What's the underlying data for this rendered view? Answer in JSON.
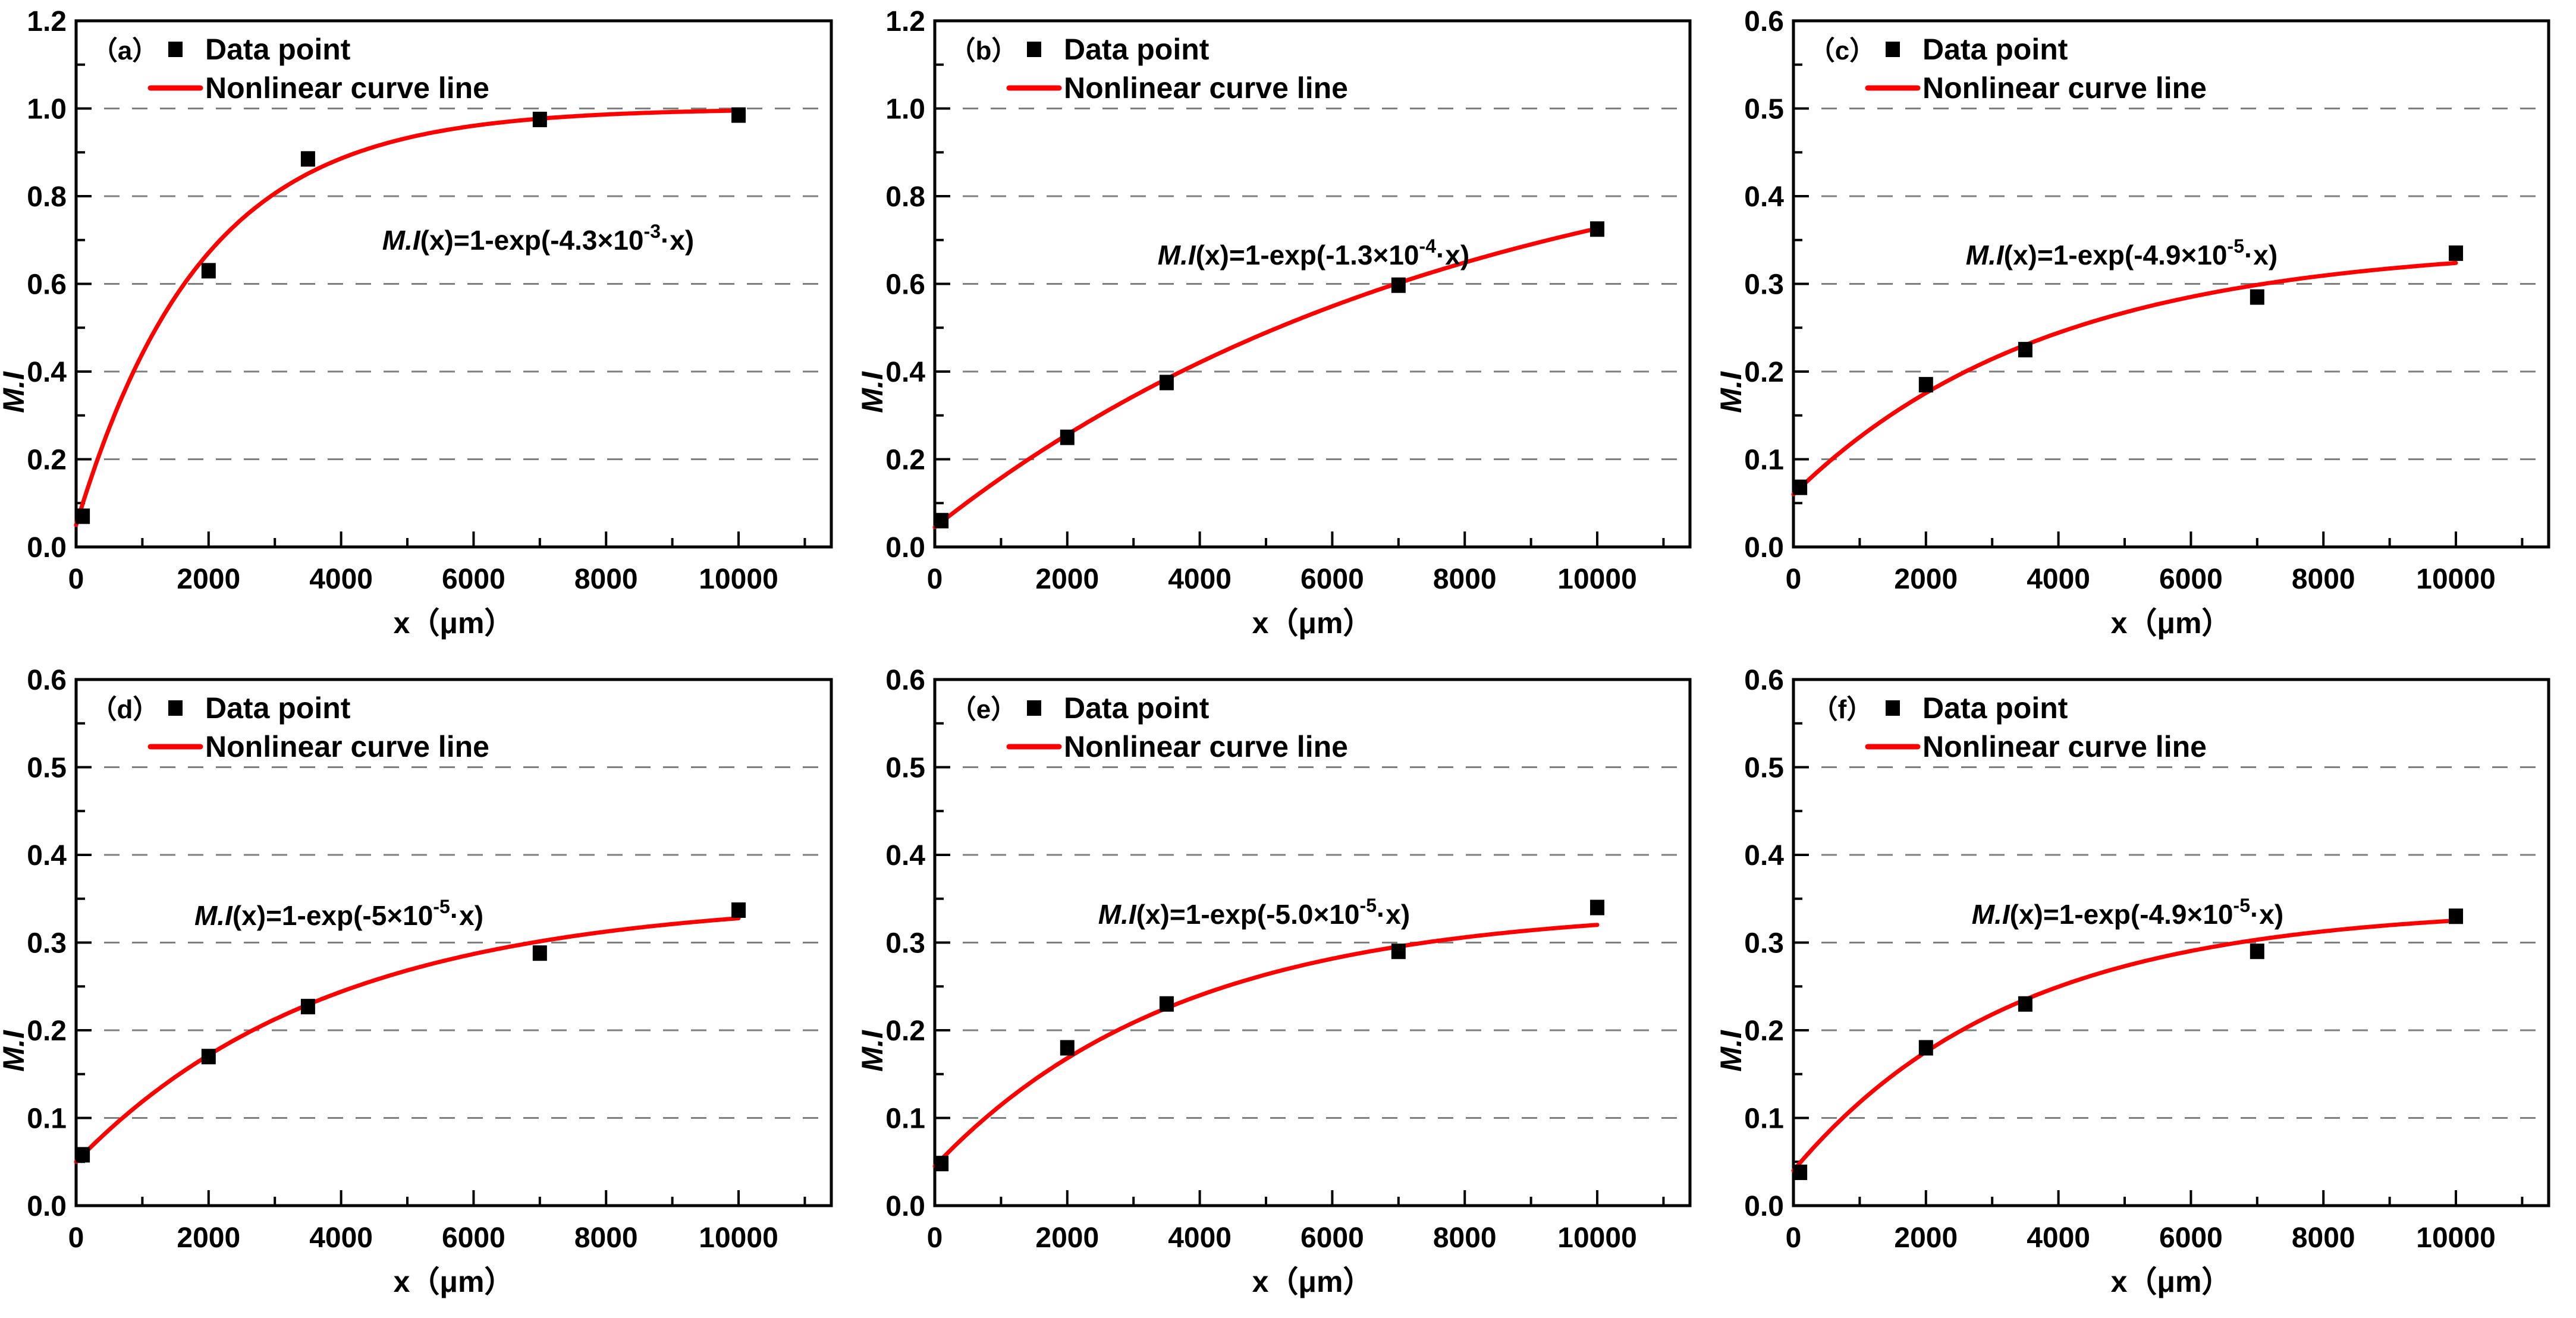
{
  "figure": {
    "xlabel": "x（μm）",
    "ylabel": "M.I",
    "legend": {
      "marker_label": "Data point",
      "line_label": "Nonlinear curve line"
    },
    "colors": {
      "curve": "#fe0000",
      "marker": "#000000",
      "grid": "#7f7f7f",
      "frame": "#000000",
      "background": "#ffffff"
    }
  },
  "chart_data": [
    {
      "type": "scatter",
      "panel": "a",
      "tag": "（a）",
      "x": [
        100,
        2000,
        3500,
        7000,
        10000
      ],
      "y": [
        0.07,
        0.63,
        0.885,
        0.975,
        0.985
      ],
      "xlim": [
        0,
        11400
      ],
      "ylim": [
        0,
        1.2
      ],
      "xticks": [
        0,
        2000,
        4000,
        6000,
        8000,
        10000
      ],
      "ytick_labels": [
        "0.0",
        "0.2",
        "0.4",
        "0.6",
        "0.8",
        "1.0",
        "1.2"
      ],
      "ytick_step": 0.2,
      "grid": "dashed-horizontal",
      "legend_position": "top-left-inside",
      "curve": {
        "model": "y = y0 + a*(1-exp(-k*x))",
        "y0": 0.05,
        "a": 0.95,
        "k": 0.00053
      },
      "equation": {
        "text": "M.I(x)=1-exp(-4.3×10⁻³·x)",
        "mi": "M.I",
        "body": "(x)=1-exp(-4.3×10",
        "exponent": "-3",
        "tail": "·x)"
      },
      "eq_pos": {
        "cx": 905,
        "cy": 420
      }
    },
    {
      "type": "scatter",
      "panel": "b",
      "tag": "（b）",
      "x": [
        100,
        2000,
        3500,
        7000,
        10000
      ],
      "y": [
        0.06,
        0.25,
        0.375,
        0.597,
        0.725
      ],
      "xlim": [
        0,
        11400
      ],
      "ylim": [
        0,
        1.2
      ],
      "xticks": [
        0,
        2000,
        4000,
        6000,
        8000,
        10000
      ],
      "ytick_labels": [
        "0.0",
        "0.2",
        "0.4",
        "0.6",
        "0.8",
        "1.0",
        "1.2"
      ],
      "ytick_step": 0.2,
      "grid": "dashed-horizontal",
      "legend_position": "top-left-inside",
      "curve": {
        "model": "y = y0 + a*(1-exp(-k*x))",
        "y0": 0.045,
        "a": 0.955,
        "k": 0.000125
      },
      "equation": {
        "text": "M.I(x)=1-exp(-1.3×10⁻⁴·x)",
        "mi": "M.I",
        "body": "(x)=1-exp(-1.3×10",
        "exponent": "-4",
        "tail": "·x)"
      },
      "eq_pos": {
        "cx": 765,
        "cy": 445
      }
    },
    {
      "type": "scatter",
      "panel": "c",
      "tag": "（c）",
      "x": [
        100,
        2000,
        3500,
        7000,
        10000
      ],
      "y": [
        0.068,
        0.185,
        0.225,
        0.285,
        0.335
      ],
      "xlim": [
        0,
        11400
      ],
      "ylim": [
        0,
        0.6
      ],
      "xticks": [
        0,
        2000,
        4000,
        6000,
        8000,
        10000
      ],
      "ytick_labels": [
        "0.0",
        "0.1",
        "0.2",
        "0.3",
        "0.4",
        "0.5",
        "0.6"
      ],
      "ytick_step": 0.1,
      "grid": "dashed-horizontal",
      "legend_position": "top-left-inside",
      "curve": {
        "model": "y = y0 + a*(1-exp(-k*x))",
        "y0": 0.06,
        "a": 0.285,
        "k": 0.00026
      },
      "equation": {
        "text": "M.I(x)=1-exp(-4.9×10⁻⁵·x)",
        "mi": "M.I",
        "body": "(x)=1-exp(-4.9×10",
        "exponent": "-5",
        "tail": "·x)"
      },
      "eq_pos": {
        "cx": 680,
        "cy": 445
      }
    },
    {
      "type": "scatter",
      "panel": "d",
      "tag": "（d）",
      "x": [
        100,
        2000,
        3500,
        7000,
        10000
      ],
      "y": [
        0.058,
        0.17,
        0.227,
        0.288,
        0.337
      ],
      "xlim": [
        0,
        11400
      ],
      "ylim": [
        0,
        0.6
      ],
      "xticks": [
        0,
        2000,
        4000,
        6000,
        8000,
        10000
      ],
      "ytick_labels": [
        "0.0",
        "0.1",
        "0.2",
        "0.3",
        "0.4",
        "0.5",
        "0.6"
      ],
      "ytick_step": 0.1,
      "grid": "dashed-horizontal",
      "legend_position": "top-left-inside",
      "curve": {
        "model": "y = y0 + a*(1-exp(-k*x))",
        "y0": 0.05,
        "a": 0.3,
        "k": 0.00026
      },
      "equation": {
        "text": "M.I(x)=1-exp(-5×10⁻⁵·x)",
        "mi": "M.I",
        "body": "(x)=1-exp(-5×10",
        "exponent": "-5",
        "tail": "·x)"
      },
      "eq_pos": {
        "cx": 570,
        "cy": 448
      }
    },
    {
      "type": "scatter",
      "panel": "e",
      "tag": "（e）",
      "x": [
        100,
        2000,
        3500,
        7000,
        10000
      ],
      "y": [
        0.048,
        0.18,
        0.23,
        0.29,
        0.34
      ],
      "xlim": [
        0,
        11400
      ],
      "ylim": [
        0,
        0.6
      ],
      "xticks": [
        0,
        2000,
        4000,
        6000,
        8000,
        10000
      ],
      "ytick_labels": [
        "0.0",
        "0.1",
        "0.2",
        "0.3",
        "0.4",
        "0.5",
        "0.6"
      ],
      "ytick_step": 0.1,
      "grid": "dashed-horizontal",
      "legend_position": "top-left-inside",
      "curve": {
        "model": "y = y0 + a*(1-exp(-k*x))",
        "y0": 0.045,
        "a": 0.295,
        "k": 0.00027
      },
      "equation": {
        "text": "M.I(x)=1-exp(-5.0×10⁻⁵·x)",
        "mi": "M.I",
        "body": "(x)=1-exp(-5.0×10",
        "exponent": "-5",
        "tail": "·x)"
      },
      "eq_pos": {
        "cx": 665,
        "cy": 446
      }
    },
    {
      "type": "scatter",
      "panel": "f",
      "tag": "（f）",
      "x": [
        100,
        2000,
        3500,
        7000,
        10000
      ],
      "y": [
        0.038,
        0.18,
        0.23,
        0.29,
        0.33
      ],
      "xlim": [
        0,
        11400
      ],
      "ylim": [
        0,
        0.6
      ],
      "xticks": [
        0,
        2000,
        4000,
        6000,
        8000,
        10000
      ],
      "ytick_labels": [
        "0.0",
        "0.1",
        "0.2",
        "0.3",
        "0.4",
        "0.5",
        "0.6"
      ],
      "ytick_step": 0.1,
      "grid": "dashed-horizontal",
      "legend_position": "top-left-inside",
      "curve": {
        "model": "y = y0 + a*(1-exp(-k*x))",
        "y0": 0.04,
        "a": 0.3,
        "k": 0.0003
      },
      "equation": {
        "text": "M.I(x)=1-exp(-4.9×10⁻⁵·x)",
        "mi": "M.I",
        "body": "(x)=1-exp(-4.9×10",
        "exponent": "-5",
        "tail": "·x)"
      },
      "eq_pos": {
        "cx": 690,
        "cy": 446
      }
    }
  ]
}
